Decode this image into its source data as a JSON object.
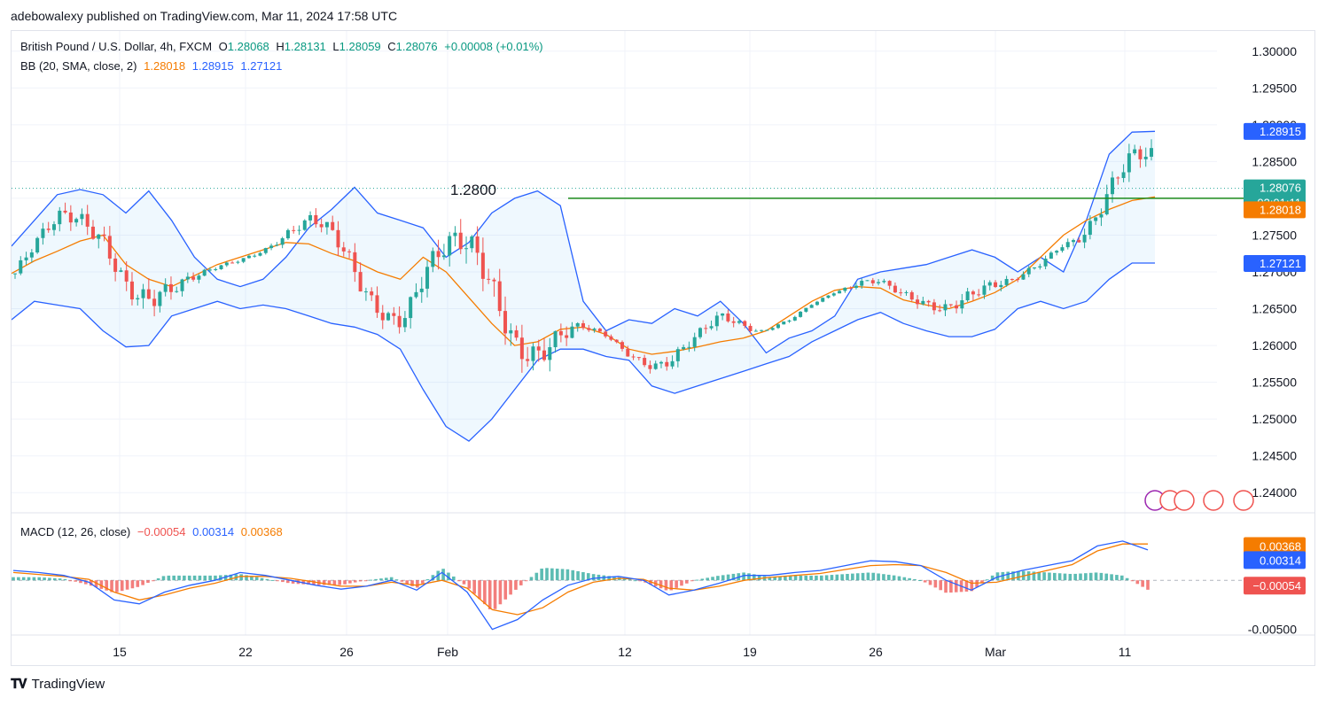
{
  "header": {
    "publisher_line": "adebowalexy published on TradingView.com, Mar 11, 2024 17:58 UTC"
  },
  "legend_main": {
    "symbol": "British Pound / U.S. Dollar, 4h, FXCM",
    "open_label": "O",
    "open": "1.28068",
    "high_label": "H",
    "high": "1.28131",
    "low_label": "L",
    "low": "1.28059",
    "close_label": "C",
    "close": "1.28076",
    "change": "+0.00008 (+0.01%)"
  },
  "legend_bb": {
    "label": "BB (20, SMA, close, 2)",
    "basis": "1.28018",
    "upper": "1.28915",
    "lower": "1.27121"
  },
  "legend_macd": {
    "label": "MACD (12, 26, close)",
    "hist": "−0.00054",
    "macd": "0.00314",
    "signal": "0.00368"
  },
  "annotation": {
    "level_text": "1.2800"
  },
  "price_tags": {
    "upper": "1.28915",
    "last": "1.28076",
    "countdown": "03:01:11",
    "basis": "1.28018",
    "lower": "1.27121",
    "macd_signal": "0.00368",
    "macd_line": "0.00314",
    "macd_hist": "−0.00054"
  },
  "footer": {
    "brand": "TradingView"
  },
  "colors": {
    "bull": "#26a69a",
    "bear": "#ef5350",
    "bb_band": "#2962ff",
    "bb_basis": "#f57c00",
    "level_line": "#1b8a1b",
    "macd_line": "#2962ff",
    "signal_line": "#f57c00"
  },
  "chart_data": {
    "type": "candlestick",
    "symbol": "British Pound / U.S. Dollar",
    "interval": "4h",
    "price_axis": {
      "ticks": [
        "1.30000",
        "1.29500",
        "1.29000",
        "1.28500",
        "1.28000",
        "1.27500",
        "1.27000",
        "1.26500",
        "1.26000",
        "1.25500",
        "1.25000",
        "1.24500",
        "1.24000"
      ],
      "ylim": [
        1.2375,
        1.3025
      ]
    },
    "time_axis": {
      "ticks": [
        "15",
        "22",
        "26",
        "Feb",
        "12",
        "19",
        "26",
        "Mar",
        "11"
      ]
    },
    "horizontal_level": 1.28,
    "bollinger": {
      "upper": [
        1.2735,
        1.277,
        1.2805,
        1.2812,
        1.2805,
        1.278,
        1.281,
        1.277,
        1.272,
        1.269,
        1.268,
        1.269,
        1.272,
        1.276,
        1.2785,
        1.2815,
        1.278,
        1.277,
        1.276,
        1.272,
        1.274,
        1.278,
        1.28,
        1.281,
        1.279,
        1.266,
        1.262,
        1.2635,
        1.263,
        1.265,
        1.264,
        1.266,
        1.263,
        1.259,
        1.261,
        1.262,
        1.264,
        1.269,
        1.27,
        1.2705,
        1.271,
        1.272,
        1.273,
        1.272,
        1.27,
        1.272,
        1.27,
        1.277,
        1.286,
        1.289,
        1.2891
      ],
      "basis": [
        1.2698,
        1.2715,
        1.2728,
        1.2742,
        1.275,
        1.271,
        1.269,
        1.268,
        1.2695,
        1.271,
        1.272,
        1.273,
        1.274,
        1.2738,
        1.2725,
        1.2715,
        1.27,
        1.269,
        1.272,
        1.27,
        1.2665,
        1.263,
        1.26,
        1.2605,
        1.2622,
        1.2625,
        1.2615,
        1.2595,
        1.2588,
        1.2592,
        1.2598,
        1.2605,
        1.261,
        1.262,
        1.264,
        1.266,
        1.2675,
        1.268,
        1.2678,
        1.2662,
        1.2655,
        1.265,
        1.266,
        1.2672,
        1.269,
        1.272,
        1.275,
        1.277,
        1.2785,
        1.2797,
        1.2802
      ],
      "lower": [
        1.2635,
        1.266,
        1.2655,
        1.265,
        1.262,
        1.2598,
        1.26,
        1.264,
        1.265,
        1.266,
        1.265,
        1.2655,
        1.265,
        1.264,
        1.263,
        1.2625,
        1.2615,
        1.2595,
        1.254,
        1.249,
        1.247,
        1.25,
        1.254,
        1.258,
        1.2595,
        1.2595,
        1.2585,
        1.258,
        1.2545,
        1.2535,
        1.2545,
        1.2555,
        1.2565,
        1.2575,
        1.2585,
        1.2605,
        1.262,
        1.2635,
        1.2645,
        1.263,
        1.262,
        1.2612,
        1.2612,
        1.2622,
        1.265,
        1.266,
        1.265,
        1.266,
        1.269,
        1.2712,
        1.2712
      ]
    },
    "macd": {
      "ticks": [
        "0.00368",
        "0.00314",
        "-0.00054",
        "-0.00500"
      ],
      "ylim": [
        -0.0063,
        0.0067
      ],
      "macd_line": [
        0.001,
        0.0008,
        0.0005,
        -0.0002,
        -0.002,
        -0.0024,
        -0.0012,
        -0.0005,
        0.0,
        0.0008,
        0.0005,
        0.0,
        -0.0005,
        -0.0009,
        -0.0006,
        0.0,
        -0.001,
        0.0008,
        -0.0012,
        -0.005,
        -0.004,
        -0.002,
        -0.0005,
        0.0002,
        0.0004,
        0.0,
        -0.0015,
        -0.001,
        -0.0003,
        0.0005,
        0.0005,
        0.0008,
        0.001,
        0.0015,
        0.002,
        0.0019,
        0.0015,
        0.0,
        -0.001,
        0.0003,
        0.001,
        0.0015,
        0.002,
        0.0035,
        0.004,
        0.0031
      ],
      "signal_line": [
        0.0008,
        0.0006,
        0.0004,
        0.0001,
        -0.0012,
        -0.002,
        -0.0015,
        -0.0008,
        -0.0003,
        0.0004,
        0.0004,
        0.0002,
        -0.0002,
        -0.0006,
        -0.0006,
        -0.0002,
        -0.0005,
        0.0,
        -0.0008,
        -0.003,
        -0.0035,
        -0.0028,
        -0.0012,
        -0.0002,
        0.0002,
        0.0001,
        -0.0008,
        -0.001,
        -0.0006,
        0.0,
        0.0003,
        0.0005,
        0.0007,
        0.0011,
        0.0015,
        0.0016,
        0.0015,
        0.0008,
        -0.0003,
        -0.0002,
        0.0004,
        0.001,
        0.0016,
        0.003,
        0.0037,
        0.0037
      ]
    }
  }
}
